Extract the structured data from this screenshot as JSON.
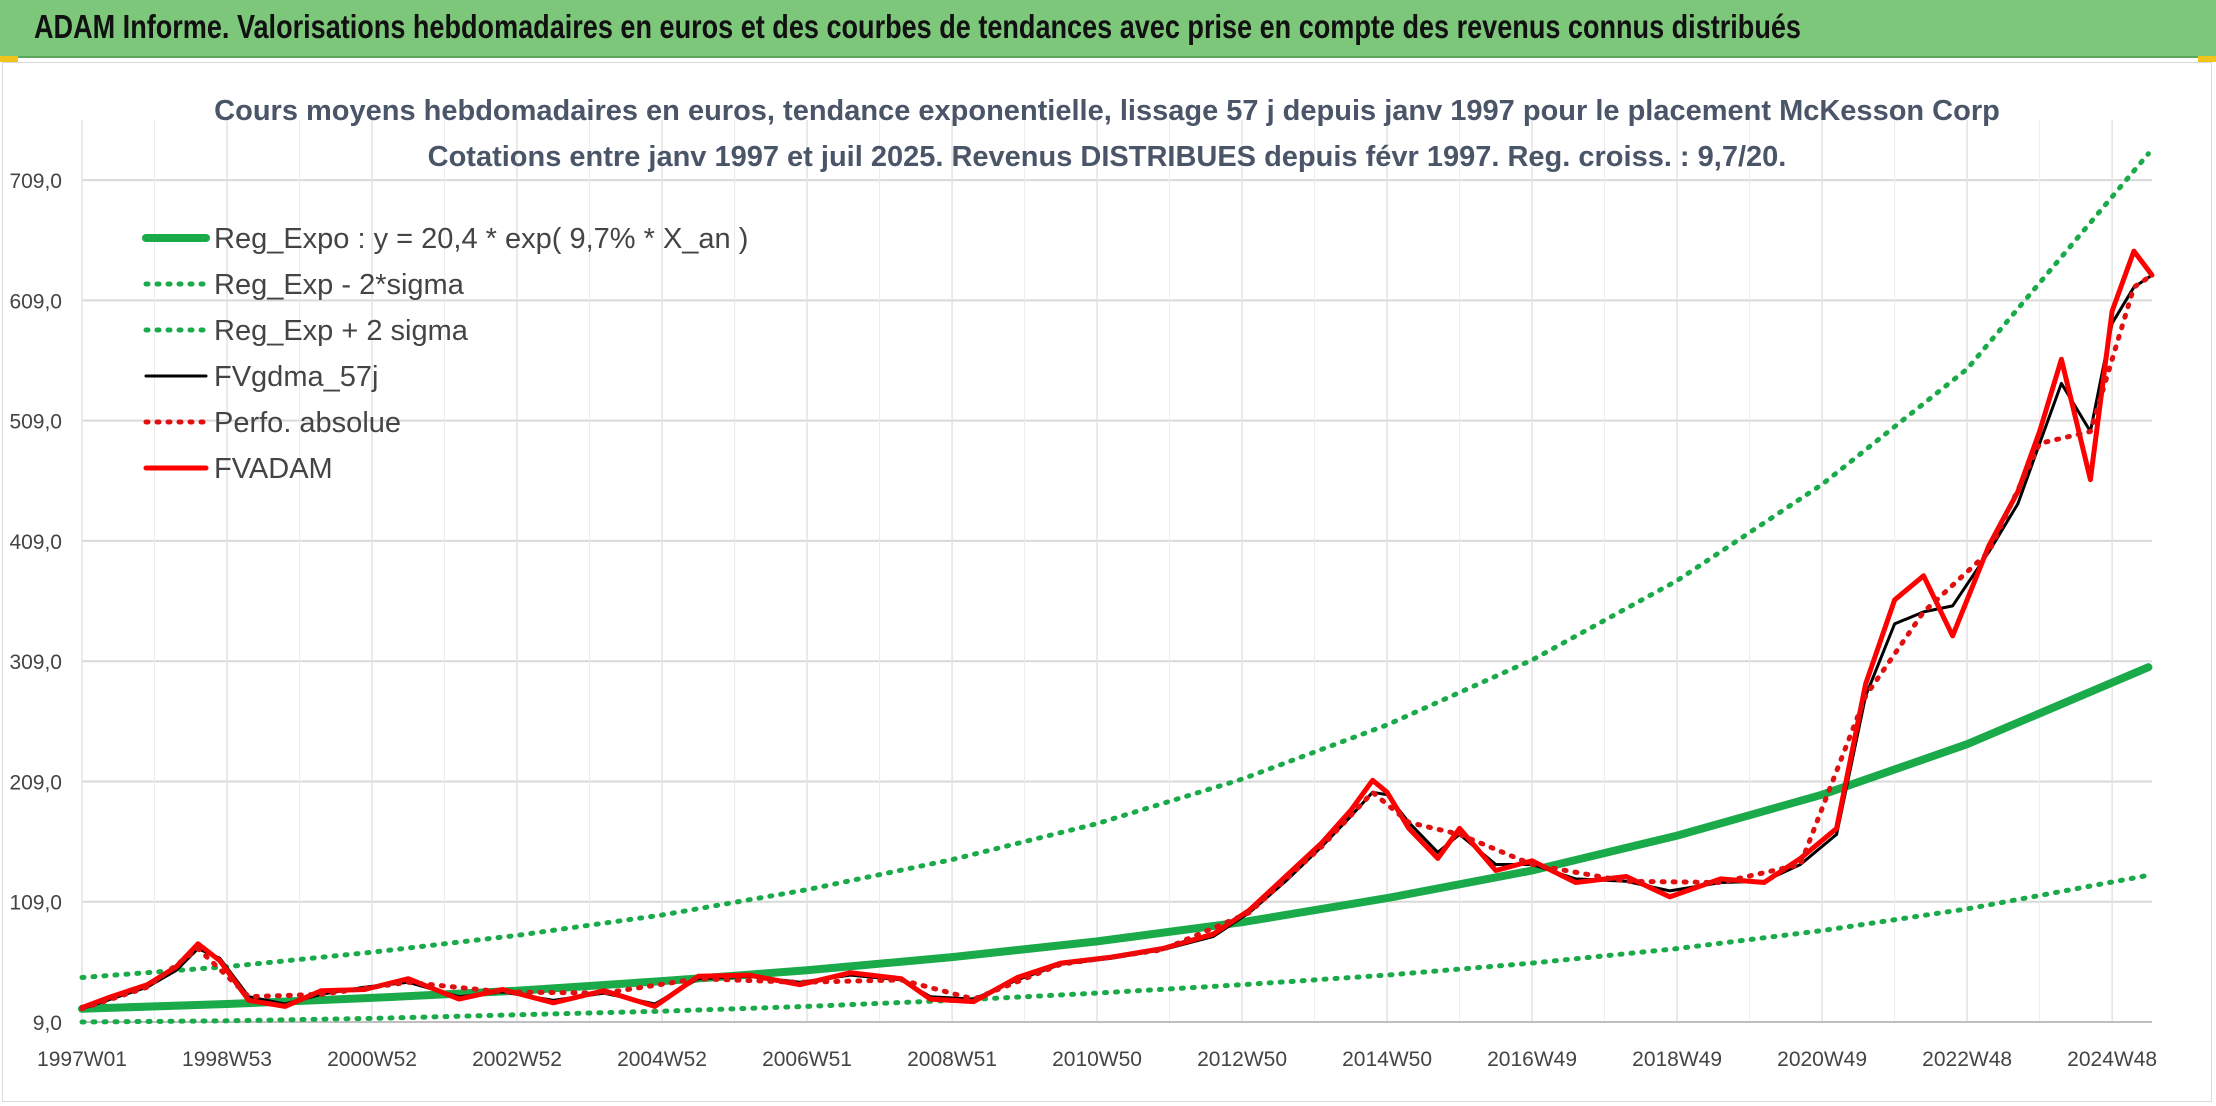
{
  "header": {
    "title": "ADAM Informe. Valorisations hebdomadaires en euros et des courbes de tendances avec prise en compte des revenus connus distribués"
  },
  "chart_data": {
    "type": "line",
    "title": "Cours moyens hebdomadaires en euros, tendance exponentielle, lissage 57 j depuis janv 1997 pour le placement McKesson Corp",
    "subtitle": "Cotations entre janv 1997 et juil 2025. Revenus DISTRIBUES depuis févr 1997. Reg. croiss. : 9,7/20.",
    "xlabel": "",
    "ylabel": "",
    "x_ticks": [
      "1997W01",
      "1998W53",
      "2000W52",
      "2002W52",
      "2004W52",
      "2006W51",
      "2008W51",
      "2010W50",
      "2012W50",
      "2014W50",
      "2016W49",
      "2018W49",
      "2020W49",
      "2022W48",
      "2024W48"
    ],
    "x_range": [
      1997.0,
      2025.55
    ],
    "y_ticks": [
      "9,0",
      "109,0",
      "209,0",
      "309,0",
      "409,0",
      "509,0",
      "609,0",
      "709,0"
    ],
    "ylim": [
      9,
      759
    ],
    "grid": true,
    "legend_position": "top-left",
    "series": [
      {
        "name": "Reg_Expo : y = 20,4 * exp( 9,7% *  X_an )",
        "color": "#1aaa4a",
        "style": "solid-thick",
        "x": [
          1997,
          1999,
          2001,
          2003,
          2005,
          2007,
          2009,
          2011,
          2013,
          2015,
          2017,
          2019,
          2021,
          2023,
          2025.5
        ],
        "values": [
          20,
          24,
          29,
          35,
          43,
          52,
          63,
          76,
          92,
          112,
          135,
          164,
          198,
          240,
          304
        ]
      },
      {
        "name": "Reg_Exp - 2*sigma",
        "color": "#1aaa4a",
        "style": "dotted",
        "x": [
          1997,
          1999,
          2001,
          2003,
          2005,
          2007,
          2009,
          2011,
          2013,
          2015,
          2017,
          2019,
          2021,
          2023,
          2025.5
        ],
        "values": [
          9,
          10,
          12,
          15,
          18,
          22,
          27,
          33,
          40,
          48,
          58,
          70,
          85,
          103,
          131
        ]
      },
      {
        "name": "Reg_Exp + 2 sigma",
        "color": "#1aaa4a",
        "style": "dotted",
        "x": [
          1997,
          1999,
          2001,
          2003,
          2005,
          2007,
          2009,
          2011,
          2013,
          2015,
          2017,
          2019,
          2021,
          2023,
          2025.5
        ],
        "values": [
          46,
          55,
          67,
          81,
          98,
          119,
          144,
          174,
          211,
          256,
          310,
          376,
          456,
          552,
          731
        ]
      },
      {
        "name": "FVgdma_57j",
        "color": "#000000",
        "style": "solid",
        "x": [
          1997.0,
          1997.4,
          1997.9,
          1998.3,
          1998.6,
          1998.9,
          1999.3,
          1999.8,
          2000.3,
          2000.9,
          2001.5,
          2002.2,
          2002.8,
          2003.5,
          2004.2,
          2004.9,
          2005.5,
          2006.2,
          2006.9,
          2007.6,
          2008.3,
          2008.7,
          2009.3,
          2009.9,
          2010.5,
          2011.2,
          2011.9,
          2012.6,
          2013.1,
          2013.6,
          2014.1,
          2014.5,
          2014.8,
          2015.0,
          2015.3,
          2015.7,
          2016.0,
          2016.5,
          2017.0,
          2017.6,
          2018.3,
          2018.9,
          2019.6,
          2020.2,
          2020.7,
          2021.2,
          2021.6,
          2022.0,
          2022.4,
          2022.8,
          2023.3,
          2023.7,
          2024.0,
          2024.3,
          2024.7,
          2025.0,
          2025.3,
          2025.55
        ],
        "values": [
          20,
          28,
          38,
          52,
          70,
          62,
          30,
          24,
          32,
          38,
          42,
          30,
          34,
          27,
          33,
          24,
          45,
          47,
          42,
          48,
          44,
          30,
          28,
          44,
          57,
          62,
          69,
          80,
          100,
          126,
          155,
          180,
          200,
          198,
          175,
          150,
          165,
          140,
          140,
          128,
          126,
          118,
          125,
          126,
          140,
          165,
          280,
          340,
          350,
          355,
          400,
          440,
          490,
          540,
          500,
          590,
          620,
          630
        ]
      },
      {
        "name": "Perfo. absolue",
        "color": "#e01010",
        "style": "dotted",
        "x": [
          1997.0,
          1997.9,
          1998.6,
          1999.3,
          2000.3,
          2001.5,
          2002.8,
          2004.2,
          2005.5,
          2006.9,
          2008.3,
          2009.3,
          2010.5,
          2011.9,
          2013.1,
          2014.1,
          2014.8,
          2015.3,
          2016.0,
          2017.0,
          2018.3,
          2019.6,
          2020.7,
          2021.6,
          2022.4,
          2023.3,
          2024.0,
          2024.7,
          2025.3,
          2025.55
        ],
        "values": [
          20,
          38,
          70,
          30,
          32,
          42,
          34,
          33,
          45,
          42,
          44,
          28,
          57,
          69,
          100,
          155,
          200,
          175,
          165,
          140,
          126,
          125,
          140,
          280,
          350,
          400,
          490,
          500,
          620,
          630
        ]
      },
      {
        "name": "FVADAM",
        "color": "#ff0000",
        "style": "solid-thick",
        "x": [
          1997.0,
          1997.4,
          1997.9,
          1998.3,
          1998.6,
          1998.9,
          1999.3,
          1999.8,
          2000.3,
          2000.9,
          2001.5,
          2002.2,
          2002.8,
          2003.5,
          2004.2,
          2004.9,
          2005.5,
          2006.2,
          2006.9,
          2007.6,
          2008.3,
          2008.7,
          2009.3,
          2009.9,
          2010.5,
          2011.2,
          2011.9,
          2012.6,
          2013.1,
          2013.6,
          2014.1,
          2014.5,
          2014.8,
          2015.0,
          2015.3,
          2015.7,
          2016.0,
          2016.5,
          2017.0,
          2017.6,
          2018.3,
          2018.9,
          2019.6,
          2020.2,
          2020.7,
          2021.2,
          2021.6,
          2022.0,
          2022.4,
          2022.8,
          2023.3,
          2023.7,
          2024.0,
          2024.3,
          2024.7,
          2025.0,
          2025.3,
          2025.55
        ],
        "values": [
          21,
          30,
          40,
          55,
          74,
          60,
          27,
          22,
          35,
          36,
          45,
          28,
          36,
          25,
          35,
          22,
          47,
          48,
          40,
          50,
          45,
          28,
          26,
          46,
          58,
          63,
          70,
          82,
          102,
          130,
          158,
          185,
          210,
          200,
          170,
          145,
          170,
          135,
          143,
          125,
          130,
          113,
          128,
          125,
          145,
          170,
          290,
          360,
          380,
          330,
          405,
          450,
          500,
          560,
          460,
          600,
          650,
          630
        ]
      }
    ]
  }
}
